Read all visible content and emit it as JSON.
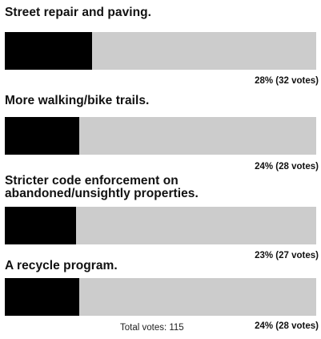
{
  "poll": {
    "options": [
      {
        "label": "Street repair and paving.",
        "percent": 28,
        "result": "28% (32 votes)"
      },
      {
        "label": "More walking/bike trails.",
        "percent": 24,
        "result": "24% (28 votes)"
      },
      {
        "label": "Stricter code enforcement on abandoned/unsightly properties.",
        "percent": 23,
        "result": "23% (27 votes)"
      },
      {
        "label": "A recycle program.",
        "percent": 24,
        "result": "24% (28 votes)"
      }
    ],
    "total": "Total votes: 115",
    "colors": {
      "bar_fill": "#000000",
      "bar_track": "#cccccc"
    }
  }
}
